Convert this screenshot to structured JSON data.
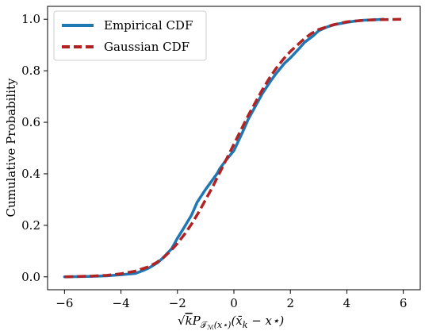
{
  "chart_data": {
    "type": "line",
    "title": "",
    "xlabel_parts": {
      "sqrt_symbol": "√",
      "sqrt_arg": "k",
      "operator": "P",
      "operator_sub": "𝒯",
      "operator_subsub": "ℳ",
      "operator_sub_tail": "(x⋆)",
      "argument": "(x̄",
      "argument_sub": "k",
      "argument_tail": " − x⋆)"
    },
    "ylabel": "Cumulative Probability",
    "xlim": [
      -6.6,
      6.6
    ],
    "ylim": [
      -0.05,
      1.05
    ],
    "xticks": [
      -6,
      -4,
      -2,
      0,
      2,
      4,
      6
    ],
    "xtick_labels": [
      "−6",
      "−4",
      "−2",
      "0",
      "2",
      "4",
      "6"
    ],
    "yticks": [
      0.0,
      0.2,
      0.4,
      0.6,
      0.8,
      1.0
    ],
    "ytick_labels": [
      "0.0",
      "0.2",
      "0.4",
      "0.6",
      "0.8",
      "1.0"
    ],
    "grid": false,
    "legend_position": "top-left",
    "series": [
      {
        "name": "Empirical CDF",
        "color": "#1f77b4",
        "style": "solid",
        "x": [
          -6.0,
          -5.0,
          -4.5,
          -4.0,
          -3.5,
          -3.2,
          -3.0,
          -2.7,
          -2.5,
          -2.2,
          -2.0,
          -1.8,
          -1.5,
          -1.3,
          -1.0,
          -0.8,
          -0.6,
          -0.5,
          -0.3,
          0.0,
          0.3,
          0.5,
          0.8,
          1.0,
          1.3,
          1.5,
          1.8,
          2.0,
          2.3,
          2.5,
          2.8,
          3.0,
          3.3,
          3.6,
          4.0,
          4.3,
          4.6,
          5.0,
          5.3
        ],
        "y": [
          0.0,
          0.002,
          0.004,
          0.008,
          0.013,
          0.025,
          0.035,
          0.055,
          0.075,
          0.11,
          0.15,
          0.185,
          0.24,
          0.29,
          0.34,
          0.37,
          0.4,
          0.42,
          0.45,
          0.49,
          0.56,
          0.61,
          0.67,
          0.71,
          0.76,
          0.79,
          0.83,
          0.85,
          0.885,
          0.91,
          0.935,
          0.955,
          0.97,
          0.98,
          0.988,
          0.993,
          0.996,
          0.998,
          1.0
        ]
      },
      {
        "name": "Gaussian CDF",
        "color": "#b22222",
        "style": "dashed",
        "x": [
          -6.0,
          -5.5,
          -5.0,
          -4.5,
          -4.0,
          -3.5,
          -3.0,
          -2.75,
          -2.5,
          -2.25,
          -2.0,
          -1.75,
          -1.5,
          -1.25,
          -1.0,
          -0.75,
          -0.5,
          -0.25,
          0.0,
          0.25,
          0.5,
          0.75,
          1.0,
          1.25,
          1.5,
          1.75,
          2.0,
          2.25,
          2.5,
          2.75,
          3.0,
          3.5,
          4.0,
          4.5,
          5.0,
          5.5,
          6.0
        ],
        "y": [
          0.0,
          0.0015,
          0.003,
          0.006,
          0.012,
          0.022,
          0.04,
          0.055,
          0.074,
          0.1,
          0.13,
          0.165,
          0.205,
          0.25,
          0.3,
          0.35,
          0.405,
          0.46,
          0.515,
          0.57,
          0.625,
          0.675,
          0.725,
          0.77,
          0.81,
          0.845,
          0.875,
          0.9,
          0.925,
          0.945,
          0.96,
          0.978,
          0.99,
          0.995,
          0.998,
          0.999,
          1.0
        ]
      }
    ]
  }
}
